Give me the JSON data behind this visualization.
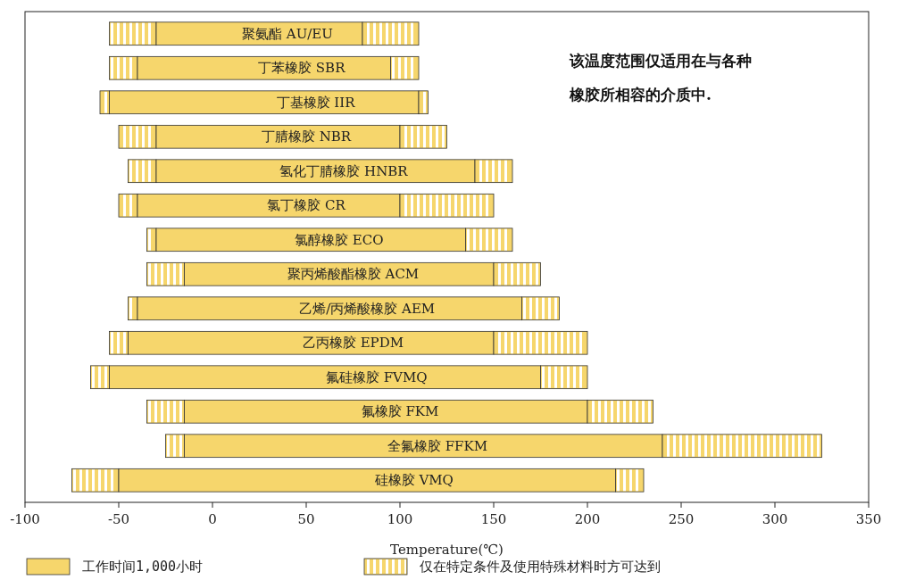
{
  "chart_data": {
    "type": "bar",
    "orientation": "horizontal",
    "xlabel": "Temperature(℃)",
    "categories": [
      "聚氨酯 AU/EU",
      "丁苯橡胶 SBR",
      "丁基橡胶 IIR",
      "丁腈橡胶 NBR",
      "氢化丁腈橡胶 HNBR",
      "氯丁橡胶 CR",
      "氯醇橡胶 ECO",
      "聚丙烯酸酯橡胶 ACM",
      "乙烯/丙烯酸橡胶 AEM",
      "乙丙橡胶 EPDM",
      "氟硅橡胶 FVMQ",
      "氟橡胶 FKM",
      "全氟橡胶 FFKM",
      "硅橡胶 VMQ"
    ],
    "series": [
      {
        "name": "仅在特定条件及使用特殊材料时方可达到",
        "color": "#f6d66c",
        "base": [
          -55,
          -55,
          -60,
          -50,
          -45,
          -50,
          -35,
          -35,
          -45,
          -55,
          -65,
          -35,
          -25,
          -75
        ],
        "values": [
          25,
          15,
          5,
          20,
          15,
          10,
          5,
          20,
          5,
          10,
          10,
          20,
          10,
          25
        ]
      },
      {
        "name": "工作时间1,000小时",
        "color": "#f6d66c",
        "base": [
          -30,
          -40,
          -55,
          -30,
          -30,
          -40,
          -30,
          -15,
          -40,
          -45,
          -55,
          -15,
          -15,
          -50
        ],
        "values": [
          110,
          135,
          165,
          130,
          170,
          140,
          165,
          165,
          205,
          195,
          230,
          215,
          255,
          265
        ]
      },
      {
        "color": "#f6d66c",
        "base": [
          80,
          95,
          110,
          100,
          140,
          100,
          135,
          150,
          165,
          150,
          175,
          200,
          240,
          215
        ],
        "values": [
          30,
          15,
          5,
          25,
          20,
          50,
          25,
          25,
          20,
          50,
          25,
          35,
          85,
          15
        ]
      }
    ],
    "xlim": [
      -100,
      350
    ],
    "xticks": [
      -100,
      -50,
      0,
      50,
      100,
      150,
      200,
      250,
      300,
      350
    ],
    "annotations": [
      "该温度范围仅适用在与各种",
      "橡胶所相容的介质中."
    ],
    "legend": "bottom"
  }
}
